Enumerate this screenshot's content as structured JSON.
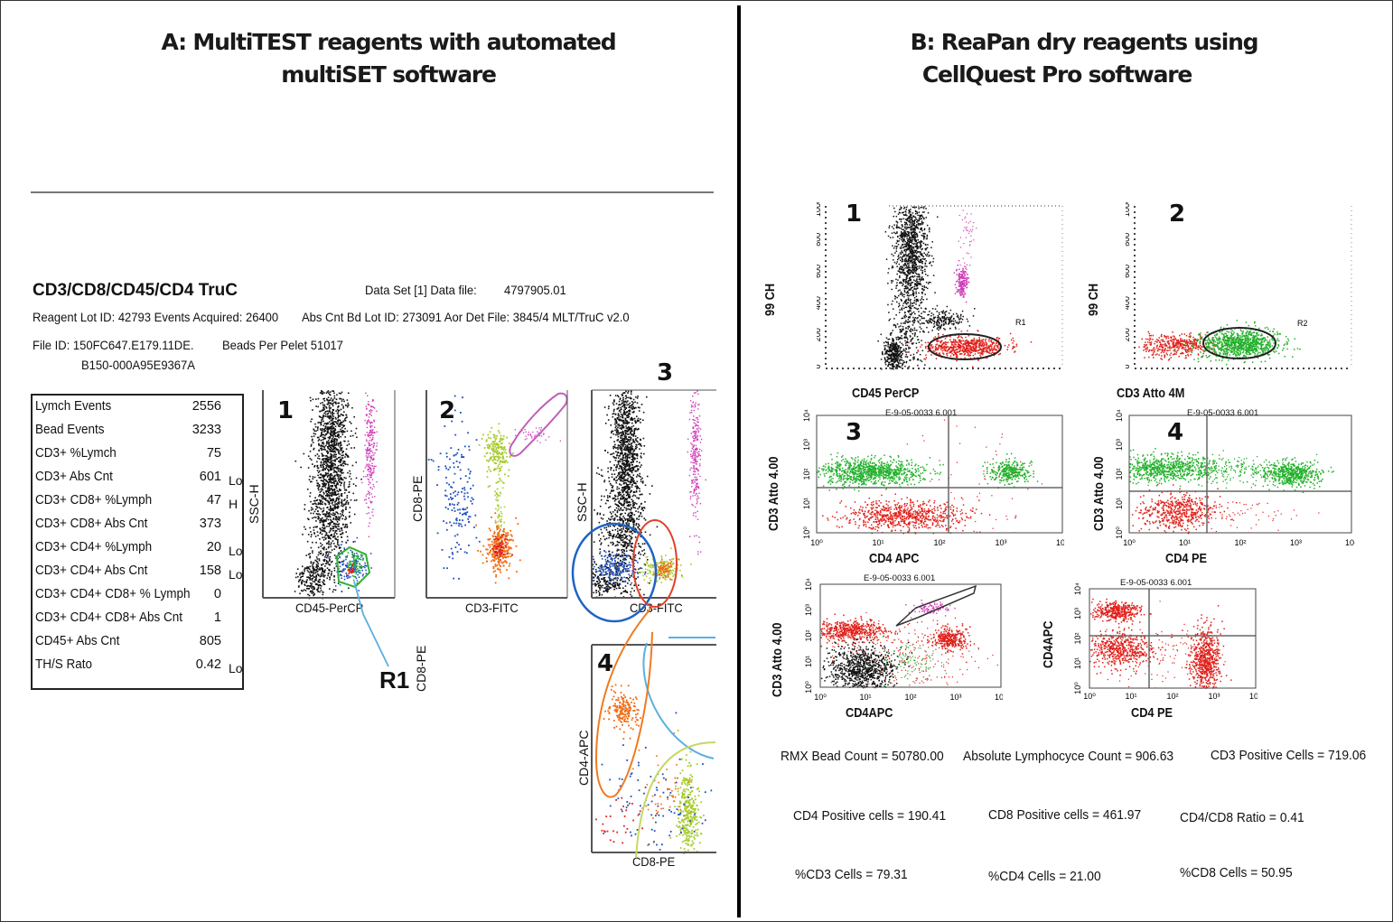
{
  "panel_a": {
    "title_line1": "A: MultiTEST reagents with automated",
    "title_line2": "multiSET software",
    "report": {
      "title": "CD3/CD8/CD45/CD4 TruC",
      "data_set_label": "Data Set [1] Data file:",
      "data_file": "4797905.01",
      "reagent_lot": "Reagent Lot ID: 42793 Events Acquired: 26400",
      "bead_lot": "Abs Cnt Bd Lot ID: 273091 Aor Det File: 3845/4 MLT/TruC v2.0",
      "file_id": "File ID:  150FC647.E179.11DE.",
      "beads_per_pellet": "Beads Per Pelet 51017",
      "file_id_cont": "B150-000A95E9367A"
    },
    "stats": [
      {
        "label": "Lymch Events",
        "value": "2556",
        "flag": ""
      },
      {
        "label": "Bead Events",
        "value": "3233",
        "flag": ""
      },
      {
        "label": "CD3+ %Lymch",
        "value": "75",
        "flag": ""
      },
      {
        "label": "CD3+ Abs Cnt",
        "value": "601",
        "flag": "Lo"
      },
      {
        "label": "CD3+ CD8+ %Lymph",
        "value": "47",
        "flag": "H"
      },
      {
        "label": "CD3+ CD8+ Abs Cnt",
        "value": "373",
        "flag": ""
      },
      {
        "label": "CD3+ CD4+ %Lymph",
        "value": "20",
        "flag": "Lo"
      },
      {
        "label": "CD3+ CD4+ Abs Cnt",
        "value": "158",
        "flag": "Lo"
      },
      {
        "label": "CD3+ CD4+ CD8+ % Lymph",
        "value": "0",
        "flag": ""
      },
      {
        "label": "CD3+ CD4+ CD8+ Abs Cnt",
        "value": "1",
        "flag": ""
      },
      {
        "label": "CD45+ Abs Cnt",
        "value": "805",
        "flag": ""
      },
      {
        "label": "TH/S Rato",
        "value": "0.42",
        "flag": "Lo"
      }
    ],
    "plots": [
      {
        "number": "1",
        "xlabel": "CD45-PerCP",
        "ylabel": "SSC-H"
      },
      {
        "number": "2",
        "xlabel": "CD3-FITC",
        "ylabel": "CD8-PE"
      },
      {
        "number": "3",
        "xlabel": "CD3-FITC",
        "ylabel": "SSC-H"
      },
      {
        "number": "4",
        "xlabel": "CD8-PE",
        "ylabel": "CD4-APC"
      }
    ],
    "gate_label": "R1",
    "gate_axis_label": "CD8-PE"
  },
  "panel_b": {
    "title_line1": "B: ReaPan dry reagents using",
    "title_line2": "CellQuest Pro software",
    "plots": [
      {
        "number": "1",
        "xlabel": "CD45 PerCP",
        "ylabel": "99 CH",
        "region": "R1",
        "file": ""
      },
      {
        "number": "2",
        "xlabel": "CD3 Atto 4M",
        "ylabel": "99 CH",
        "region": "R2",
        "file": ""
      },
      {
        "number": "3",
        "xlabel": "CD4 APC",
        "ylabel": "CD3 Atto 4.00",
        "region": "",
        "file": "E-9-05-0033 6.001"
      },
      {
        "number": "4",
        "xlabel": "CD4 PE",
        "ylabel": "CD3 Atto 4.00",
        "region": "",
        "file": "E-9-05-0033 6.001"
      },
      {
        "number": "",
        "xlabel": "CD4APC",
        "ylabel": "CD3 Atto 4.00",
        "region": "",
        "file": "E-9-05-0033 6.001"
      },
      {
        "number": "",
        "xlabel": "CD4 PE",
        "ylabel": "CD4APC",
        "region": "",
        "file": "E-9-05-0033 6.001"
      }
    ],
    "ssc_ticks": [
      "1000",
      "800",
      "600",
      "400",
      "200",
      "0"
    ],
    "log_ticks": [
      "10⁰",
      "10¹",
      "10²",
      "10³",
      "10⁴"
    ],
    "results": [
      "RMX Bead Count = 50780.00",
      "Absolute Lymphocyce Count = 906.63",
      "CD3 Positive Cells = 719.06",
      "CD4 Positive cells = 190.41",
      "CD8 Positive cells = 461.97",
      "CD4/CD8 Ratio = 0.41",
      "%CD3 Cells = 79.31",
      "%CD4 Cells = 21.00",
      "%CD8 Cells = 50.95"
    ]
  },
  "colors": {
    "black_events": "#111111",
    "red_events": "#e0201a",
    "green_events": "#22b02a",
    "blue_events": "#2050c0",
    "magenta_events": "#d03cb8",
    "orange_events": "#f06a10",
    "lime_events": "#a8cc30",
    "gate_blue": "#1f63c6",
    "gate_red": "#e0402a",
    "gate_cyan": "#5ab0e0",
    "gate_orange": "#f07a20",
    "gate_green": "#30b030",
    "gate_magenta": "#c060b8"
  }
}
